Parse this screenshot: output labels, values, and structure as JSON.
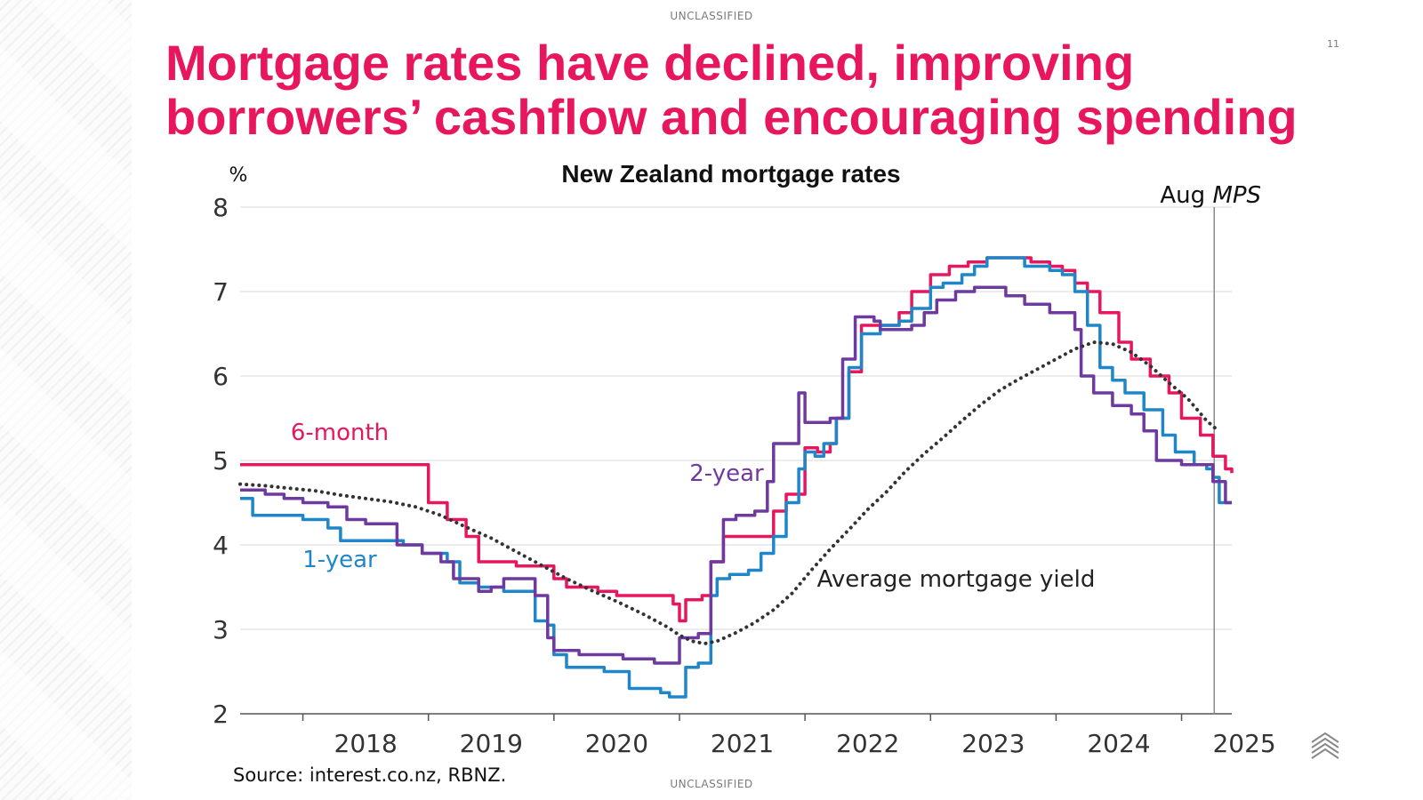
{
  "header": {
    "classification": "UNCLASSIFIED",
    "page_number": "11"
  },
  "slide": {
    "title_lines": [
      "Mortgage rates have declined, improving",
      "borrowers’ cashflow and encouraging spending"
    ]
  },
  "footer": {
    "source": "Source: interest.co.nz, RBNZ.",
    "classification": "UNCLASSIFIED"
  },
  "colors": {
    "title": "#e8175d",
    "six_month": "#e8175d",
    "one_year": "#1f87c9",
    "two_year": "#6e3aa0",
    "avg_yield": "#333333"
  },
  "chart_data": {
    "type": "line",
    "title": "New Zealand mortgage rates",
    "ylabel": "%",
    "ylim": [
      2,
      8
    ],
    "yticks": [
      "2",
      "3",
      "4",
      "5",
      "6",
      "7",
      "8"
    ],
    "xlim": [
      2017.5,
      2025.4
    ],
    "xticks": [
      "2018",
      "2019",
      "2020",
      "2021",
      "2022",
      "2023",
      "2024",
      "2025"
    ],
    "grid": "horizontal",
    "annotation": {
      "x": 2025.26,
      "text_prefix": "Aug ",
      "text_italic": "MPS"
    },
    "series": [
      {
        "name": "6-month",
        "label": "6-month",
        "style": "step",
        "points": [
          [
            2017.5,
            4.95
          ],
          [
            2018.35,
            4.95
          ],
          [
            2018.9,
            4.95
          ],
          [
            2019.0,
            4.5
          ],
          [
            2019.15,
            4.3
          ],
          [
            2019.3,
            4.1
          ],
          [
            2019.4,
            3.8
          ],
          [
            2019.7,
            3.75
          ],
          [
            2019.9,
            3.75
          ],
          [
            2020.0,
            3.6
          ],
          [
            2020.1,
            3.5
          ],
          [
            2020.35,
            3.45
          ],
          [
            2020.5,
            3.4
          ],
          [
            2020.7,
            3.4
          ],
          [
            2020.9,
            3.4
          ],
          [
            2020.95,
            3.3
          ],
          [
            2021.0,
            3.1
          ],
          [
            2021.05,
            3.35
          ],
          [
            2021.18,
            3.4
          ],
          [
            2021.25,
            3.8
          ],
          [
            2021.35,
            4.1
          ],
          [
            2021.55,
            4.1
          ],
          [
            2021.75,
            4.4
          ],
          [
            2021.85,
            4.6
          ],
          [
            2022.0,
            5.15
          ],
          [
            2022.1,
            5.1
          ],
          [
            2022.2,
            5.2
          ],
          [
            2022.25,
            5.5
          ],
          [
            2022.35,
            6.05
          ],
          [
            2022.45,
            6.6
          ],
          [
            2022.6,
            6.6
          ],
          [
            2022.75,
            6.75
          ],
          [
            2022.85,
            7.0
          ],
          [
            2023.0,
            7.2
          ],
          [
            2023.15,
            7.3
          ],
          [
            2023.3,
            7.35
          ],
          [
            2023.45,
            7.4
          ],
          [
            2023.6,
            7.4
          ],
          [
            2023.8,
            7.35
          ],
          [
            2023.95,
            7.3
          ],
          [
            2024.05,
            7.25
          ],
          [
            2024.15,
            7.1
          ],
          [
            2024.25,
            7.0
          ],
          [
            2024.35,
            6.75
          ],
          [
            2024.5,
            6.4
          ],
          [
            2024.6,
            6.2
          ],
          [
            2024.75,
            6.0
          ],
          [
            2024.9,
            5.8
          ],
          [
            2025.0,
            5.5
          ],
          [
            2025.15,
            5.3
          ],
          [
            2025.25,
            5.05
          ],
          [
            2025.35,
            4.9
          ],
          [
            2025.4,
            4.85
          ]
        ]
      },
      {
        "name": "1-year",
        "label": "1-year",
        "style": "step",
        "points": [
          [
            2017.5,
            4.55
          ],
          [
            2017.6,
            4.35
          ],
          [
            2017.9,
            4.35
          ],
          [
            2018.0,
            4.3
          ],
          [
            2018.2,
            4.2
          ],
          [
            2018.3,
            4.05
          ],
          [
            2018.45,
            4.05
          ],
          [
            2018.6,
            4.05
          ],
          [
            2018.8,
            4.0
          ],
          [
            2018.95,
            3.9
          ],
          [
            2019.15,
            3.8
          ],
          [
            2019.25,
            3.55
          ],
          [
            2019.4,
            3.5
          ],
          [
            2019.6,
            3.45
          ],
          [
            2019.75,
            3.45
          ],
          [
            2019.85,
            3.1
          ],
          [
            2019.95,
            3.05
          ],
          [
            2020.0,
            2.7
          ],
          [
            2020.1,
            2.55
          ],
          [
            2020.35,
            2.55
          ],
          [
            2020.4,
            2.5
          ],
          [
            2020.55,
            2.5
          ],
          [
            2020.6,
            2.3
          ],
          [
            2020.75,
            2.3
          ],
          [
            2020.85,
            2.25
          ],
          [
            2020.92,
            2.2
          ],
          [
            2021.0,
            2.2
          ],
          [
            2021.05,
            2.55
          ],
          [
            2021.15,
            2.6
          ],
          [
            2021.25,
            3.4
          ],
          [
            2021.3,
            3.6
          ],
          [
            2021.4,
            3.65
          ],
          [
            2021.55,
            3.7
          ],
          [
            2021.65,
            3.9
          ],
          [
            2021.75,
            4.1
          ],
          [
            2021.85,
            4.5
          ],
          [
            2021.95,
            4.9
          ],
          [
            2022.0,
            5.1
          ],
          [
            2022.08,
            5.05
          ],
          [
            2022.15,
            5.2
          ],
          [
            2022.25,
            5.5
          ],
          [
            2022.35,
            6.1
          ],
          [
            2022.45,
            6.5
          ],
          [
            2022.6,
            6.6
          ],
          [
            2022.75,
            6.65
          ],
          [
            2022.85,
            6.8
          ],
          [
            2023.0,
            7.05
          ],
          [
            2023.1,
            7.1
          ],
          [
            2023.25,
            7.2
          ],
          [
            2023.35,
            7.3
          ],
          [
            2023.45,
            7.4
          ],
          [
            2023.6,
            7.4
          ],
          [
            2023.75,
            7.3
          ],
          [
            2023.95,
            7.25
          ],
          [
            2024.05,
            7.2
          ],
          [
            2024.15,
            7.0
          ],
          [
            2024.25,
            6.6
          ],
          [
            2024.35,
            6.1
          ],
          [
            2024.45,
            5.95
          ],
          [
            2024.55,
            5.8
          ],
          [
            2024.7,
            5.6
          ],
          [
            2024.85,
            5.3
          ],
          [
            2024.95,
            5.1
          ],
          [
            2025.1,
            4.95
          ],
          [
            2025.2,
            4.9
          ],
          [
            2025.25,
            4.8
          ],
          [
            2025.3,
            4.5
          ],
          [
            2025.4,
            4.5
          ]
        ]
      },
      {
        "name": "2-year",
        "label": "2-year",
        "style": "step",
        "points": [
          [
            2017.5,
            4.65
          ],
          [
            2017.7,
            4.6
          ],
          [
            2017.85,
            4.55
          ],
          [
            2018.0,
            4.5
          ],
          [
            2018.2,
            4.45
          ],
          [
            2018.35,
            4.3
          ],
          [
            2018.5,
            4.25
          ],
          [
            2018.7,
            4.25
          ],
          [
            2018.75,
            4.0
          ],
          [
            2018.95,
            3.9
          ],
          [
            2019.1,
            3.8
          ],
          [
            2019.2,
            3.6
          ],
          [
            2019.4,
            3.45
          ],
          [
            2019.5,
            3.5
          ],
          [
            2019.6,
            3.6
          ],
          [
            2019.75,
            3.6
          ],
          [
            2019.85,
            3.4
          ],
          [
            2019.95,
            2.9
          ],
          [
            2020.0,
            2.75
          ],
          [
            2020.2,
            2.7
          ],
          [
            2020.4,
            2.7
          ],
          [
            2020.55,
            2.65
          ],
          [
            2020.7,
            2.65
          ],
          [
            2020.8,
            2.6
          ],
          [
            2020.95,
            2.6
          ],
          [
            2021.0,
            2.9
          ],
          [
            2021.15,
            2.95
          ],
          [
            2021.25,
            3.8
          ],
          [
            2021.35,
            4.3
          ],
          [
            2021.45,
            4.35
          ],
          [
            2021.6,
            4.4
          ],
          [
            2021.7,
            4.75
          ],
          [
            2021.75,
            5.2
          ],
          [
            2021.85,
            5.2
          ],
          [
            2021.95,
            5.8
          ],
          [
            2022.0,
            5.45
          ],
          [
            2022.2,
            5.5
          ],
          [
            2022.3,
            6.2
          ],
          [
            2022.4,
            6.7
          ],
          [
            2022.55,
            6.65
          ],
          [
            2022.6,
            6.55
          ],
          [
            2022.75,
            6.55
          ],
          [
            2022.85,
            6.6
          ],
          [
            2022.95,
            6.75
          ],
          [
            2023.05,
            6.9
          ],
          [
            2023.2,
            7.0
          ],
          [
            2023.35,
            7.05
          ],
          [
            2023.5,
            7.05
          ],
          [
            2023.6,
            6.95
          ],
          [
            2023.75,
            6.85
          ],
          [
            2023.95,
            6.75
          ],
          [
            2024.1,
            6.75
          ],
          [
            2024.15,
            6.55
          ],
          [
            2024.2,
            6.0
          ],
          [
            2024.3,
            5.8
          ],
          [
            2024.45,
            5.65
          ],
          [
            2024.6,
            5.55
          ],
          [
            2024.7,
            5.35
          ],
          [
            2024.8,
            5.0
          ],
          [
            2025.0,
            4.95
          ],
          [
            2025.2,
            4.95
          ],
          [
            2025.25,
            4.75
          ],
          [
            2025.35,
            4.5
          ],
          [
            2025.4,
            4.5
          ]
        ]
      },
      {
        "name": "Average mortgage yield",
        "label": "Average mortgage yield",
        "style": "dotted",
        "points": [
          [
            2017.5,
            4.72
          ],
          [
            2017.7,
            4.7
          ],
          [
            2017.9,
            4.67
          ],
          [
            2018.1,
            4.64
          ],
          [
            2018.3,
            4.59
          ],
          [
            2018.5,
            4.55
          ],
          [
            2018.7,
            4.51
          ],
          [
            2018.9,
            4.45
          ],
          [
            2019.1,
            4.35
          ],
          [
            2019.3,
            4.21
          ],
          [
            2019.5,
            4.08
          ],
          [
            2019.7,
            3.92
          ],
          [
            2019.9,
            3.76
          ],
          [
            2020.1,
            3.6
          ],
          [
            2020.3,
            3.46
          ],
          [
            2020.5,
            3.33
          ],
          [
            2020.7,
            3.19
          ],
          [
            2020.9,
            3.03
          ],
          [
            2021.0,
            2.93
          ],
          [
            2021.1,
            2.86
          ],
          [
            2021.2,
            2.83
          ],
          [
            2021.3,
            2.86
          ],
          [
            2021.45,
            2.96
          ],
          [
            2021.6,
            3.08
          ],
          [
            2021.75,
            3.23
          ],
          [
            2021.9,
            3.43
          ],
          [
            2022.05,
            3.7
          ],
          [
            2022.2,
            3.95
          ],
          [
            2022.35,
            4.18
          ],
          [
            2022.5,
            4.42
          ],
          [
            2022.65,
            4.63
          ],
          [
            2022.8,
            4.87
          ],
          [
            2022.95,
            5.08
          ],
          [
            2023.1,
            5.27
          ],
          [
            2023.25,
            5.47
          ],
          [
            2023.4,
            5.66
          ],
          [
            2023.55,
            5.83
          ],
          [
            2023.7,
            5.96
          ],
          [
            2023.85,
            6.08
          ],
          [
            2024.0,
            6.2
          ],
          [
            2024.15,
            6.32
          ],
          [
            2024.3,
            6.4
          ],
          [
            2024.45,
            6.38
          ],
          [
            2024.6,
            6.28
          ],
          [
            2024.75,
            6.12
          ],
          [
            2024.9,
            5.92
          ],
          [
            2025.05,
            5.73
          ],
          [
            2025.2,
            5.47
          ],
          [
            2025.27,
            5.38
          ]
        ]
      }
    ]
  }
}
